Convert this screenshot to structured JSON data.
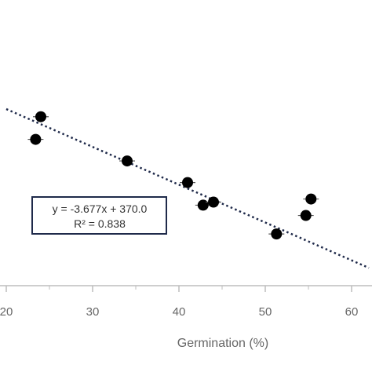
{
  "chart_data": {
    "type": "scatter",
    "title": "",
    "xlabel": "Germination (%)",
    "ylabel": "",
    "xlim": [
      20,
      62
    ],
    "ylim": [
      140,
      330
    ],
    "xticks": [
      20,
      30,
      40,
      50,
      60
    ],
    "xtick_labels": [
      "20",
      "30",
      "40",
      "50",
      "60"
    ],
    "grid": false,
    "series": [
      {
        "marker_color": "#000000",
        "points": [
          {
            "x": 24.0,
            "y": 289
          },
          {
            "x": 23.4,
            "y": 267
          },
          {
            "x": 34.0,
            "y": 246
          },
          {
            "x": 41.0,
            "y": 225
          },
          {
            "x": 42.8,
            "y": 203
          },
          {
            "x": 44.0,
            "y": 206
          },
          {
            "x": 55.3,
            "y": 209
          },
          {
            "x": 54.7,
            "y": 193
          },
          {
            "x": 51.3,
            "y": 175
          }
        ]
      }
    ],
    "trendline": {
      "type": "linear",
      "slope": -3.677,
      "intercept": 370.0,
      "color": "#1f2a4a",
      "style": "dotted"
    },
    "annotation": {
      "line1": "y = -3.677x + 370.0",
      "line2": "R² = 0.838",
      "border_color": "#1f2a4a"
    }
  }
}
